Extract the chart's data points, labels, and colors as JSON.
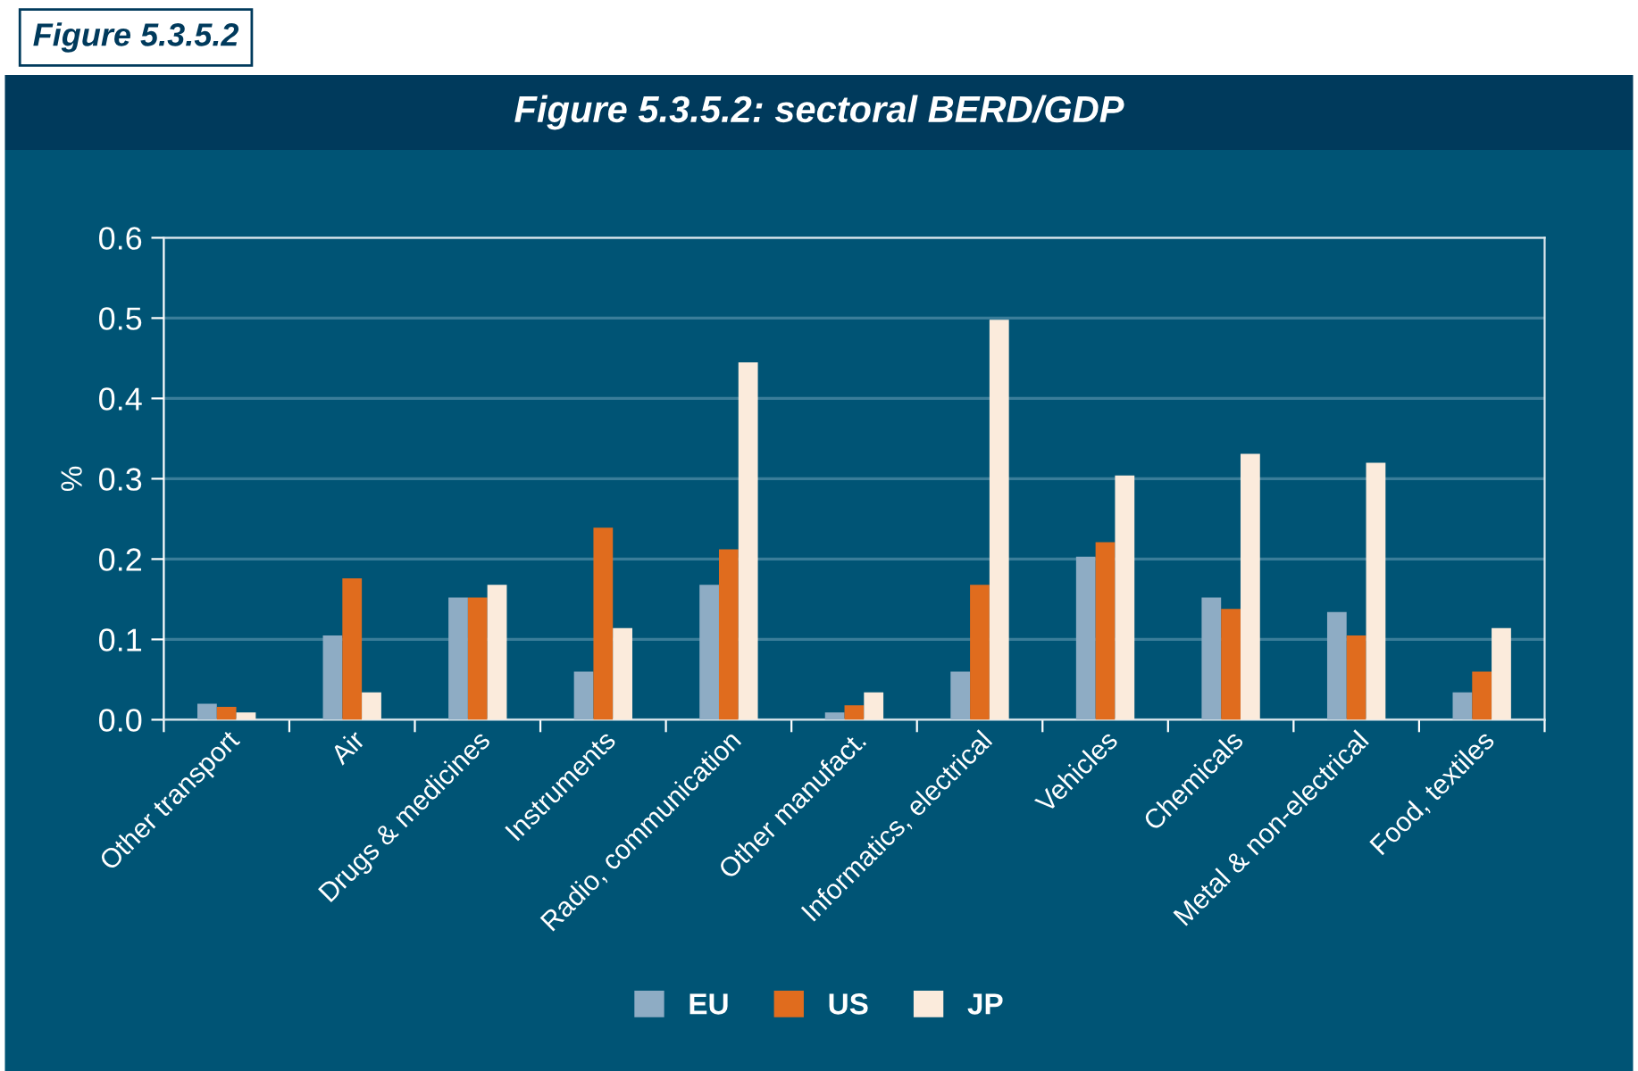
{
  "chart_data": {
    "type": "bar",
    "title": "Figure 5.3.5.2: sectoral BERD/GDP",
    "annotations": [
      "Figure 5.3.5.2"
    ],
    "ylabel": "%",
    "categories": [
      "Other transport",
      "Air",
      "Drugs & medicines",
      "Instruments",
      "Radio, communication",
      "Other manufact.",
      "Informatics, electrical",
      "Vehicles",
      "Chemicals",
      "Metal & non-electrical",
      "Food, textiles"
    ],
    "series": [
      {
        "name": "EU",
        "color": "#8eacc4",
        "values": [
          0.02,
          0.105,
          0.152,
          0.06,
          0.168,
          0.009,
          0.06,
          0.203,
          0.152,
          0.134,
          0.034
        ]
      },
      {
        "name": "US",
        "color": "#e06c1e",
        "values": [
          0.016,
          0.176,
          0.152,
          0.239,
          0.212,
          0.018,
          0.168,
          0.221,
          0.138,
          0.105,
          0.06
        ]
      },
      {
        "name": "JP",
        "color": "#fbebdc",
        "values": [
          0.009,
          0.034,
          0.168,
          0.114,
          0.445,
          0.034,
          0.498,
          0.304,
          0.331,
          0.32,
          0.114
        ]
      }
    ],
    "ylim": [
      0,
      0.6
    ],
    "yticks": [
      {
        "value": 0,
        "label": "0.0"
      },
      0.1,
      0.2,
      0.3,
      0.4,
      0.5,
      0.6
    ],
    "grid": "y",
    "legend": "bottom"
  }
}
